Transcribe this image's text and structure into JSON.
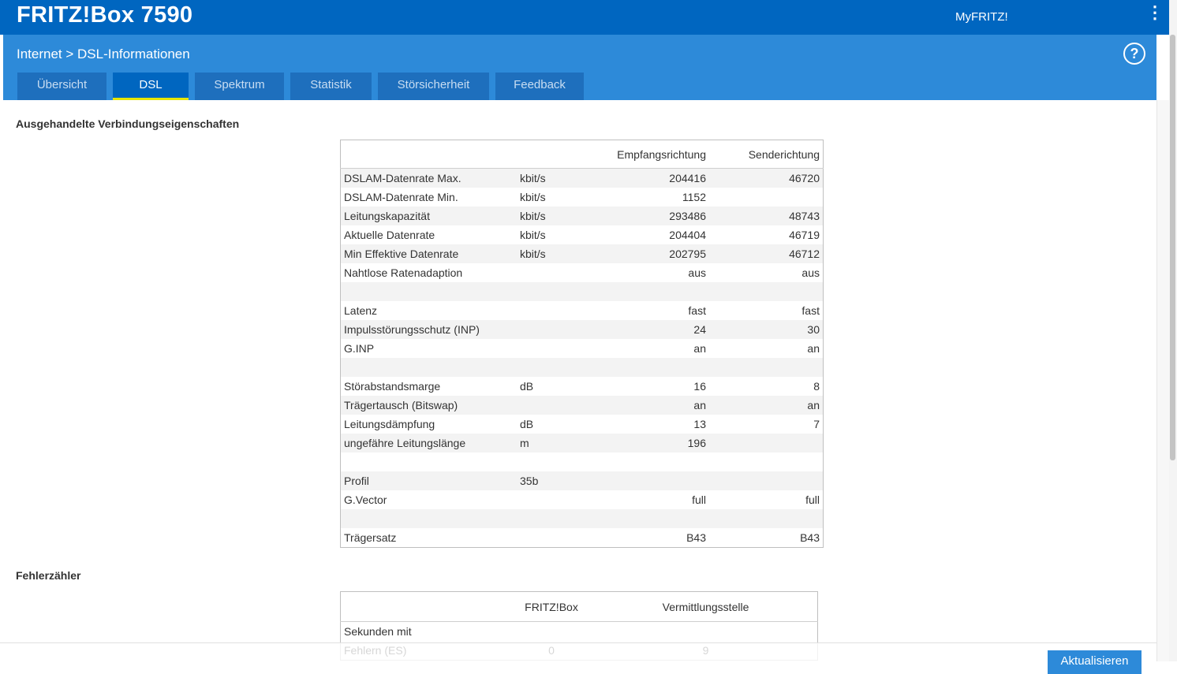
{
  "app": {
    "title": "FRITZ!Box 7590",
    "myfritz": "MyFRITZ!",
    "menu_glyph": "⋮",
    "help_glyph": "?"
  },
  "breadcrumb": "Internet > DSL-Informationen",
  "tabs": [
    "Übersicht",
    "DSL",
    "Spektrum",
    "Statistik",
    "Störsicherheit",
    "Feedback"
  ],
  "active_tab": "DSL",
  "section1": {
    "title": "Ausgehandelte Verbindungseigenschaften",
    "headers": [
      "",
      "",
      "Empfangsrichtung",
      "Senderichtung"
    ],
    "rows": [
      [
        "DSLAM-Datenrate Max.",
        "kbit/s",
        "204416",
        "46720"
      ],
      [
        "DSLAM-Datenrate Min.",
        "kbit/s",
        "1152",
        ""
      ],
      [
        "Leitungskapazität",
        "kbit/s",
        "293486",
        "48743"
      ],
      [
        "Aktuelle Datenrate",
        "kbit/s",
        "204404",
        "46719"
      ],
      [
        "Min Effektive Datenrate",
        "kbit/s",
        "202795",
        "46712"
      ],
      [
        "Nahtlose Ratenadaption",
        "",
        "aus",
        "aus"
      ],
      [
        "",
        "",
        "",
        ""
      ],
      [
        "Latenz",
        "",
        "fast",
        "fast"
      ],
      [
        "Impulsstörungsschutz (INP)",
        "",
        "24",
        "30"
      ],
      [
        "G.INP",
        "",
        "an",
        "an"
      ],
      [
        "",
        "",
        "",
        ""
      ],
      [
        "Störabstandsmarge",
        "dB",
        "16",
        "8"
      ],
      [
        "Trägertausch (Bitswap)",
        "",
        "an",
        "an"
      ],
      [
        "Leitungsdämpfung",
        "dB",
        "13",
        "7"
      ],
      [
        "ungefähre Leitungslänge",
        "m",
        "196",
        ""
      ],
      [
        "",
        "",
        "",
        ""
      ],
      [
        "Profil",
        "35b",
        "",
        ""
      ],
      [
        "G.Vector",
        "",
        "full",
        "full"
      ],
      [
        "",
        "",
        "",
        ""
      ],
      [
        "Trägersatz",
        "",
        "B43",
        "B43"
      ]
    ]
  },
  "section2": {
    "title": "Fehlerzähler",
    "headers": [
      "",
      "FRITZ!Box",
      "Vermittlungsstelle"
    ],
    "rows": [
      [
        "Sekunden mit",
        "",
        ""
      ],
      [
        "Fehlern (ES)",
        "0",
        "9"
      ]
    ]
  },
  "refresh_label": "Aktualisieren"
}
